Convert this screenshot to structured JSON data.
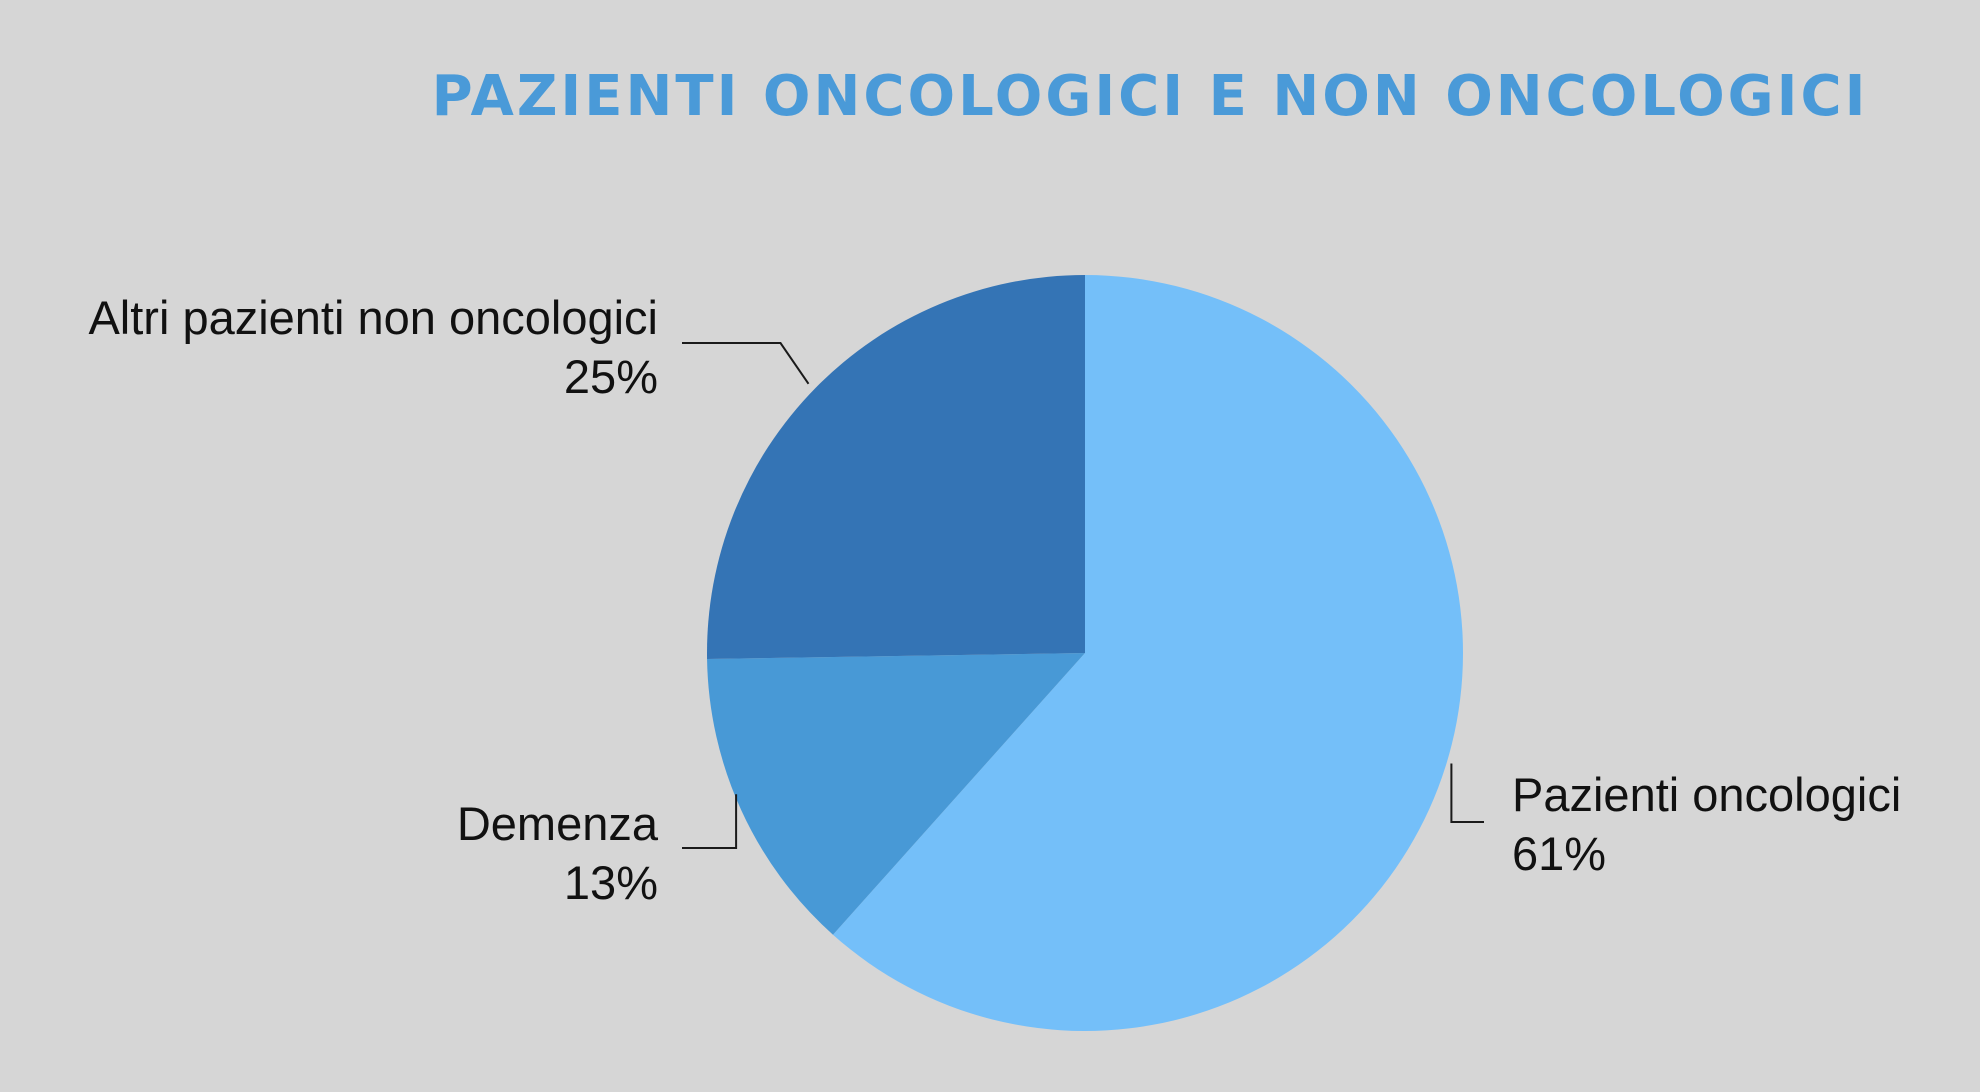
{
  "chart_data": {
    "type": "pie",
    "title": "PAZIENTI ONCOLOGICI E NON ONCOLOGICI",
    "start_angle_deg": 0,
    "direction": "clockwise",
    "slices": [
      {
        "label": "Pazienti oncologici",
        "value": 61,
        "value_label": "61%",
        "color": "#74bff9"
      },
      {
        "label": "Demenza",
        "value": 13,
        "value_label": "13%",
        "color": "#4899d6"
      },
      {
        "label": "Altri pazienti non oncologici",
        "value": 25,
        "value_label": "25%",
        "color": "#3474b5"
      }
    ]
  },
  "colors": {
    "background": "#d6d6d6",
    "title": "#4a9ad8",
    "label_text": "#111111"
  }
}
